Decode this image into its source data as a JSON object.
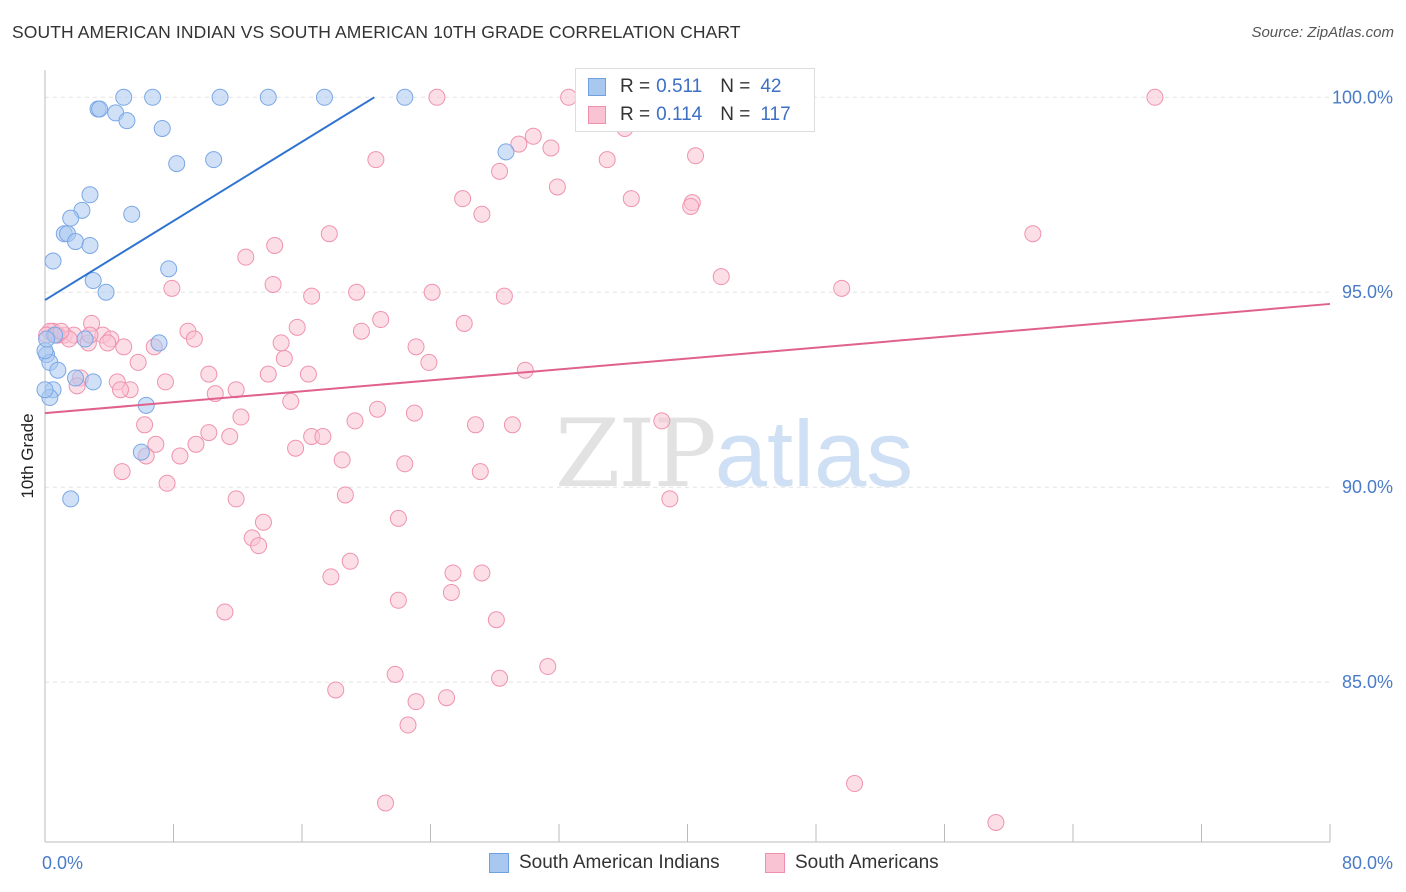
{
  "title": "SOUTH AMERICAN INDIAN VS SOUTH AMERICAN 10TH GRADE CORRELATION CHART",
  "source": "Source: ZipAtlas.com",
  "watermark": {
    "zip": "ZIP",
    "atlas": "atlas"
  },
  "legend": {
    "rows": [
      {
        "r_label": "R =",
        "r_value": "0.511",
        "n_label": "N =",
        "n_value": "42",
        "color": "#a9c8f0",
        "border": "#6fa0e0"
      },
      {
        "r_label": "R =",
        "r_value": "0.114",
        "n_label": "N =",
        "n_value": "117",
        "color": "#f9c3d3",
        "border": "#ef8fac"
      }
    ]
  },
  "bottom_legend": [
    {
      "label": "South American Indians",
      "color": "#a9c8f0",
      "border": "#6fa0e0"
    },
    {
      "label": "South Americans",
      "color": "#f9c3d3",
      "border": "#ef8fac"
    }
  ],
  "chart_data": {
    "type": "scatter",
    "title": "SOUTH AMERICAN INDIAN VS SOUTH AMERICAN 10TH GRADE CORRELATION CHART",
    "xlabel": "",
    "ylabel": "10th Grade",
    "xlim": [
      0,
      80
    ],
    "ylim": [
      80.9,
      100.7
    ],
    "x_tick_labels": [
      {
        "value": 0,
        "label": "0.0%"
      },
      {
        "value": 80,
        "label": "80.0%"
      }
    ],
    "y_tick_labels": [
      {
        "value": 85,
        "label": "85.0%"
      },
      {
        "value": 90,
        "label": "90.0%"
      },
      {
        "value": 95,
        "label": "95.0%"
      },
      {
        "value": 100,
        "label": "100.0%"
      }
    ],
    "grid": true,
    "series": [
      {
        "name": "South American Indians",
        "color": "#7ba7e6",
        "fill": "#a9c8f0",
        "trend": {
          "x1": 0.0,
          "y1": 94.8,
          "x2": 20.5,
          "y2": 100.0,
          "color": "#2f74cf"
        },
        "points": [
          [
            4.9,
            100.0
          ],
          [
            6.7,
            100.0
          ],
          [
            10.9,
            100.0
          ],
          [
            13.9,
            100.0
          ],
          [
            17.4,
            100.0
          ],
          [
            22.4,
            100.0
          ],
          [
            3.3,
            99.7
          ],
          [
            3.4,
            99.7
          ],
          [
            4.4,
            99.6
          ],
          [
            5.1,
            99.4
          ],
          [
            7.3,
            99.2
          ],
          [
            28.7,
            98.6
          ],
          [
            8.2,
            98.3
          ],
          [
            10.5,
            98.4
          ],
          [
            2.8,
            97.5
          ],
          [
            2.3,
            97.1
          ],
          [
            1.6,
            96.9
          ],
          [
            5.4,
            97.0
          ],
          [
            1.2,
            96.5
          ],
          [
            1.4,
            96.5
          ],
          [
            1.9,
            96.3
          ],
          [
            2.8,
            96.2
          ],
          [
            0.5,
            95.8
          ],
          [
            7.7,
            95.6
          ],
          [
            3.0,
            95.3
          ],
          [
            3.8,
            95.0
          ],
          [
            0.6,
            93.9
          ],
          [
            2.5,
            93.8
          ],
          [
            7.1,
            93.7
          ],
          [
            0.1,
            93.4
          ],
          [
            0.3,
            93.2
          ],
          [
            0.8,
            93.0
          ],
          [
            1.9,
            92.8
          ],
          [
            3.0,
            92.7
          ],
          [
            0.5,
            92.5
          ],
          [
            0.3,
            92.3
          ],
          [
            6.3,
            92.1
          ],
          [
            6.0,
            90.9
          ],
          [
            1.6,
            89.7
          ],
          [
            0.0,
            92.5
          ],
          [
            0.0,
            93.5
          ],
          [
            0.1,
            93.8
          ]
        ]
      },
      {
        "name": "South Americans",
        "color": "#ef93ae",
        "fill": "#f9c3d3",
        "trend": {
          "x1": 0.0,
          "y1": 91.9,
          "x2": 80.0,
          "y2": 94.7,
          "color": "#e0608e"
        },
        "points": [
          [
            24.4,
            100.0
          ],
          [
            32.6,
            100.0
          ],
          [
            69.1,
            100.0
          ],
          [
            30.4,
            99.0
          ],
          [
            36.1,
            99.2
          ],
          [
            29.5,
            98.8
          ],
          [
            31.5,
            98.7
          ],
          [
            35.0,
            98.4
          ],
          [
            40.5,
            98.5
          ],
          [
            20.6,
            98.4
          ],
          [
            28.3,
            98.1
          ],
          [
            31.9,
            97.7
          ],
          [
            26.0,
            97.4
          ],
          [
            36.5,
            97.4
          ],
          [
            40.3,
            97.3
          ],
          [
            40.2,
            97.2
          ],
          [
            27.2,
            97.0
          ],
          [
            61.5,
            96.5
          ],
          [
            17.7,
            96.5
          ],
          [
            14.3,
            96.2
          ],
          [
            12.5,
            95.9
          ],
          [
            42.1,
            95.4
          ],
          [
            49.6,
            95.1
          ],
          [
            14.2,
            95.2
          ],
          [
            7.9,
            95.1
          ],
          [
            19.4,
            95.0
          ],
          [
            16.6,
            94.9
          ],
          [
            24.1,
            95.0
          ],
          [
            28.6,
            94.9
          ],
          [
            20.9,
            94.3
          ],
          [
            26.1,
            94.2
          ],
          [
            15.7,
            94.1
          ],
          [
            19.7,
            94.0
          ],
          [
            8.9,
            94.0
          ],
          [
            2.9,
            94.2
          ],
          [
            3.6,
            93.9
          ],
          [
            4.1,
            93.8
          ],
          [
            9.3,
            93.8
          ],
          [
            4.9,
            93.6
          ],
          [
            6.8,
            93.6
          ],
          [
            2.7,
            93.7
          ],
          [
            14.7,
            93.7
          ],
          [
            23.1,
            93.6
          ],
          [
            1.2,
            93.9
          ],
          [
            0.8,
            93.9
          ],
          [
            0.5,
            94.0
          ],
          [
            0.3,
            94.0
          ],
          [
            0.1,
            93.9
          ],
          [
            14.9,
            93.3
          ],
          [
            5.8,
            93.2
          ],
          [
            23.9,
            93.2
          ],
          [
            10.2,
            92.9
          ],
          [
            13.9,
            92.9
          ],
          [
            16.4,
            92.9
          ],
          [
            29.9,
            93.0
          ],
          [
            2.2,
            92.8
          ],
          [
            4.5,
            92.7
          ],
          [
            7.5,
            92.7
          ],
          [
            2.0,
            92.6
          ],
          [
            5.3,
            92.5
          ],
          [
            10.6,
            92.4
          ],
          [
            11.9,
            92.5
          ],
          [
            4.7,
            92.5
          ],
          [
            15.3,
            92.2
          ],
          [
            20.7,
            92.0
          ],
          [
            23.0,
            91.9
          ],
          [
            12.2,
            91.8
          ],
          [
            19.3,
            91.7
          ],
          [
            26.8,
            91.6
          ],
          [
            29.1,
            91.6
          ],
          [
            38.4,
            91.7
          ],
          [
            6.2,
            91.6
          ],
          [
            11.5,
            91.3
          ],
          [
            10.2,
            91.4
          ],
          [
            16.6,
            91.3
          ],
          [
            17.3,
            91.3
          ],
          [
            9.4,
            91.1
          ],
          [
            6.9,
            91.1
          ],
          [
            8.4,
            90.8
          ],
          [
            15.6,
            91.0
          ],
          [
            6.3,
            90.8
          ],
          [
            18.5,
            90.7
          ],
          [
            22.4,
            90.6
          ],
          [
            27.1,
            90.4
          ],
          [
            4.8,
            90.4
          ],
          [
            7.6,
            90.1
          ],
          [
            11.9,
            89.7
          ],
          [
            18.7,
            89.8
          ],
          [
            38.9,
            89.7
          ],
          [
            22.0,
            89.2
          ],
          [
            13.6,
            89.1
          ],
          [
            12.9,
            88.7
          ],
          [
            13.3,
            88.5
          ],
          [
            19.0,
            88.1
          ],
          [
            17.8,
            87.7
          ],
          [
            25.4,
            87.8
          ],
          [
            27.2,
            87.8
          ],
          [
            25.3,
            87.3
          ],
          [
            22.0,
            87.1
          ],
          [
            11.2,
            86.8
          ],
          [
            28.1,
            86.6
          ],
          [
            31.3,
            85.4
          ],
          [
            21.8,
            85.2
          ],
          [
            28.3,
            85.1
          ],
          [
            18.1,
            84.8
          ],
          [
            23.1,
            84.5
          ],
          [
            25.0,
            84.6
          ],
          [
            22.6,
            83.9
          ],
          [
            50.4,
            82.4
          ],
          [
            21.2,
            81.9
          ],
          [
            59.2,
            81.4
          ],
          [
            2.8,
            93.9
          ],
          [
            1.8,
            93.9
          ],
          [
            1.5,
            93.8
          ],
          [
            3.9,
            93.7
          ],
          [
            0.7,
            93.9
          ],
          [
            1.0,
            94.0
          ]
        ]
      }
    ]
  }
}
